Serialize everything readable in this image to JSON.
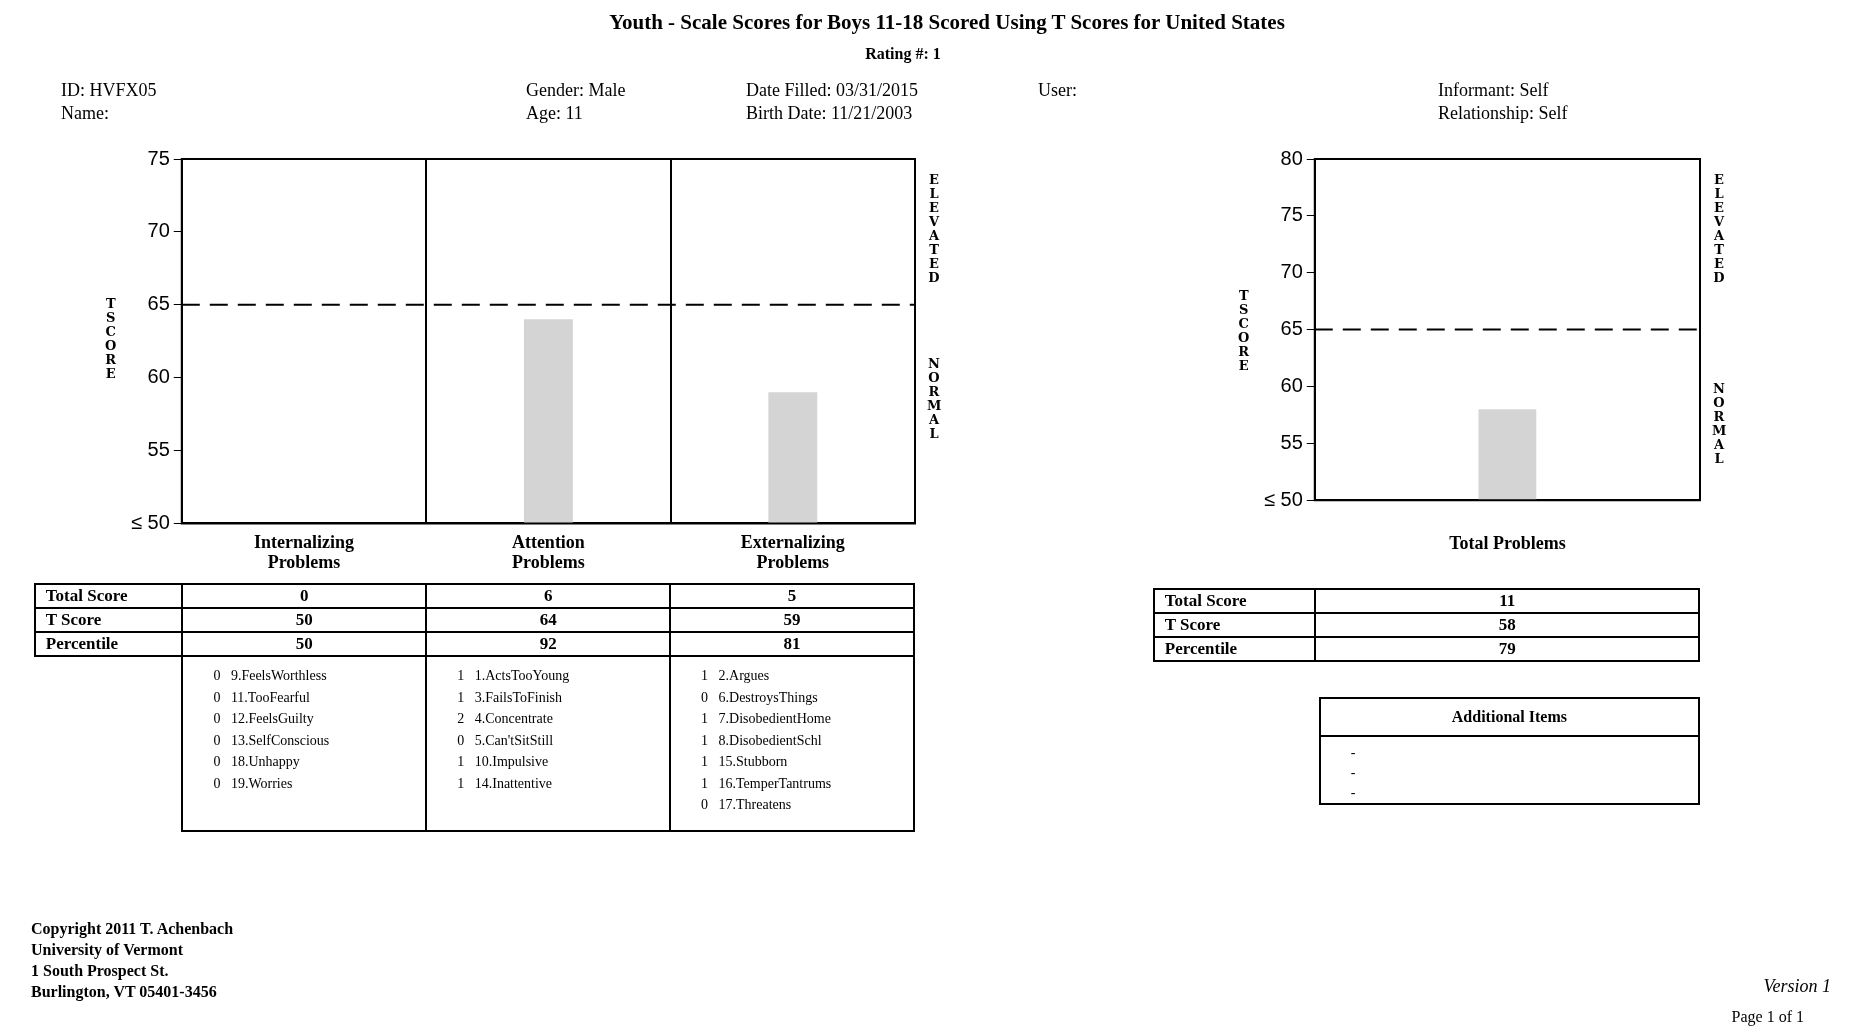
{
  "chart_data": [
    {
      "type": "bar",
      "title": "Youth - Scale Scores for Boys 11-18 Scored Using T Scores for United States",
      "subtitle": "Rating #: 1",
      "ylabel": "T SCORE",
      "categories": [
        "Internalizing Problems",
        "Attention Problems",
        "Externalizing Problems"
      ],
      "values": [
        50,
        64,
        59
      ],
      "color": "#d4d4d4",
      "ylim": [
        50,
        75
      ],
      "yticks": [
        {
          "value": 50,
          "label": "≤ 50"
        },
        55,
        60,
        65,
        70,
        75
      ],
      "grid": "x",
      "ref_lines": [
        {
          "axis": "y",
          "value": 65,
          "line_style": "dashed",
          "color": "#000000"
        }
      ],
      "data_labels": true,
      "annotations": [
        "ID: HVFX05",
        "Name:",
        "Gender: Male",
        "Age: 11",
        "Date Filled: 03/31/2015",
        "Birth Date: 11/21/2003",
        "User:",
        "Informant: Self",
        "Relationship: Self",
        "ELEVATED",
        "NORMAL",
        "Total Score",
        "T Score",
        "Percentile",
        "0",
        "6",
        "5",
        "50",
        "92",
        "81",
        "0   9.FeelsWorthless",
        "0   11.TooFearful",
        "0   12.FeelsGuilty",
        "0   13.SelfConscious",
        "0   18.Unhappy",
        "0   19.Worries",
        "1   1.ActsTooYoung",
        "1   3.FailsToFinish",
        "2   4.Concentrate",
        "0   5.Can'tSitStill",
        "1   10.Impulsive",
        "1   14.Inattentive",
        "1   2.Argues",
        "0   6.DestroysThings",
        "1   7.DisobedientHome",
        "1   8.DisobedientSchl",
        "1   15.Stubborn",
        "1   16.TemperTantrums",
        "0   17.Threatens",
        "Copyright 2011 T. Achenbach",
        "University of Vermont",
        "1 South Prospect St.",
        "Burlington, VT 05401-3456",
        "Version 1",
        "Page 1 of 1"
      ]
    },
    {
      "type": "bar",
      "ylabel": "T SCORE",
      "categories": [
        "Total Problems"
      ],
      "values": [
        58
      ],
      "color": "#d4d4d4",
      "ylim": [
        50,
        80
      ],
      "yticks": [
        {
          "value": 50,
          "label": "≤ 50"
        },
        55,
        60,
        65,
        70,
        75,
        80
      ],
      "ref_lines": [
        {
          "axis": "y",
          "value": 65,
          "line_style": "dashed",
          "color": "#000000"
        }
      ],
      "annotations": [
        "ELEVATED",
        "NORMAL",
        "Total Score",
        "T Score",
        "Percentile",
        "11",
        "79",
        "Additional Items",
        "-",
        "-",
        "-",
        "58"
      ]
    }
  ]
}
